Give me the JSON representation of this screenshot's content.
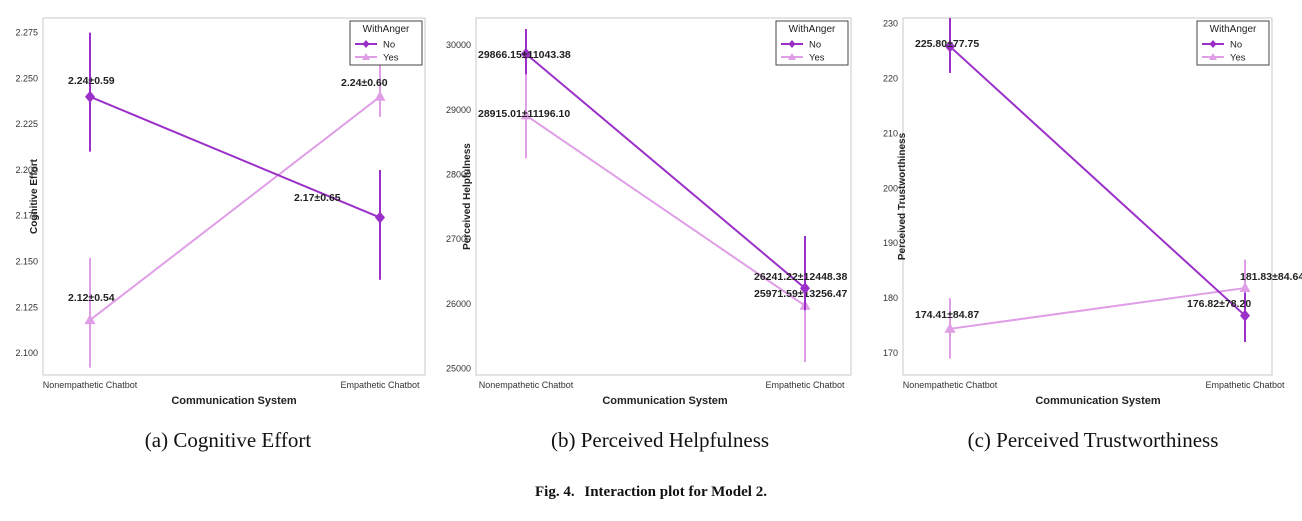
{
  "figure": {
    "caption_label": "Fig. 4.",
    "caption_text": "Interaction plot for Model 2."
  },
  "colors": {
    "No": "#9b30c8",
    "Yes": "#df9ee6"
  },
  "panels": [
    {
      "caption": "(a) Cognitive Effort"
    },
    {
      "caption": "(b) Perceived Helpfulness"
    },
    {
      "caption": "(c) Perceived Trustworthiness"
    }
  ],
  "chart_data": [
    {
      "type": "line",
      "xlabel": "Communication System",
      "ylabel": "Cognitive Effort",
      "categories": [
        "Nonempathetic Chatbot",
        "Empathetic Chatbot"
      ],
      "ylim": [
        2.088,
        2.283
      ],
      "yticks": [
        "2.100",
        "2.125",
        "2.150",
        "2.175",
        "2.200",
        "2.225",
        "2.250",
        "2.275"
      ],
      "grid": false,
      "legend": {
        "title": "WithAnger",
        "position": "top-right"
      },
      "series": [
        {
          "name": "No",
          "values": [
            2.24,
            2.174
          ],
          "err_low": [
            2.21,
            2.14
          ],
          "err_high": [
            2.275,
            2.2
          ],
          "labels": [
            "2.24±0.59",
            "2.17±0.65"
          ]
        },
        {
          "name": "Yes",
          "values": [
            2.118,
            2.24
          ],
          "err_low": [
            2.092,
            2.229
          ],
          "err_high": [
            2.152,
            2.258
          ],
          "labels": [
            "2.12±0.54",
            "2.24±0.60"
          ]
        }
      ]
    },
    {
      "type": "line",
      "xlabel": "Communication System",
      "ylabel": "Perceived Helpfulness",
      "categories": [
        "Nonempathetic Chatbot",
        "Empathetic Chatbot"
      ],
      "ylim": [
        24900,
        30420
      ],
      "yticks": [
        "25000",
        "26000",
        "27000",
        "28000",
        "29000",
        "30000"
      ],
      "grid": false,
      "legend": {
        "title": "WithAnger",
        "position": "top-right"
      },
      "series": [
        {
          "name": "No",
          "values": [
            29866,
            26241
          ],
          "err_low": [
            29550,
            25900
          ],
          "err_high": [
            30250,
            27050
          ],
          "labels": [
            "29866.15±11043.38",
            "26241.22±12448.38"
          ]
        },
        {
          "name": "Yes",
          "values": [
            28915,
            25971
          ],
          "err_low": [
            28250,
            25100
          ],
          "err_high": [
            29600,
            26750
          ],
          "labels": [
            "28915.01±11196.10",
            "25971.59±13256.47"
          ]
        }
      ]
    },
    {
      "type": "line",
      "xlabel": "Communication System",
      "ylabel": "Perceived Trustworthiness",
      "categories": [
        "Nonempathetic Chatbot",
        "Empathetic Chatbot"
      ],
      "ylim": [
        166,
        231
      ],
      "yticks": [
        "170",
        "180",
        "190",
        "200",
        "210",
        "220",
        "230"
      ],
      "grid": false,
      "legend": {
        "title": "WithAnger",
        "position": "top-right"
      },
      "series": [
        {
          "name": "No",
          "values": [
            225.8,
            176.82
          ],
          "err_low": [
            221,
            172
          ],
          "err_high": [
            231,
            181
          ],
          "labels": [
            "225.80±77.75",
            "176.82±78.20"
          ]
        },
        {
          "name": "Yes",
          "values": [
            174.41,
            181.83
          ],
          "err_low": [
            169,
            176.5
          ],
          "err_high": [
            180,
            187
          ],
          "labels": [
            "174.41±84.87",
            "181.83±84.64"
          ]
        }
      ]
    }
  ]
}
